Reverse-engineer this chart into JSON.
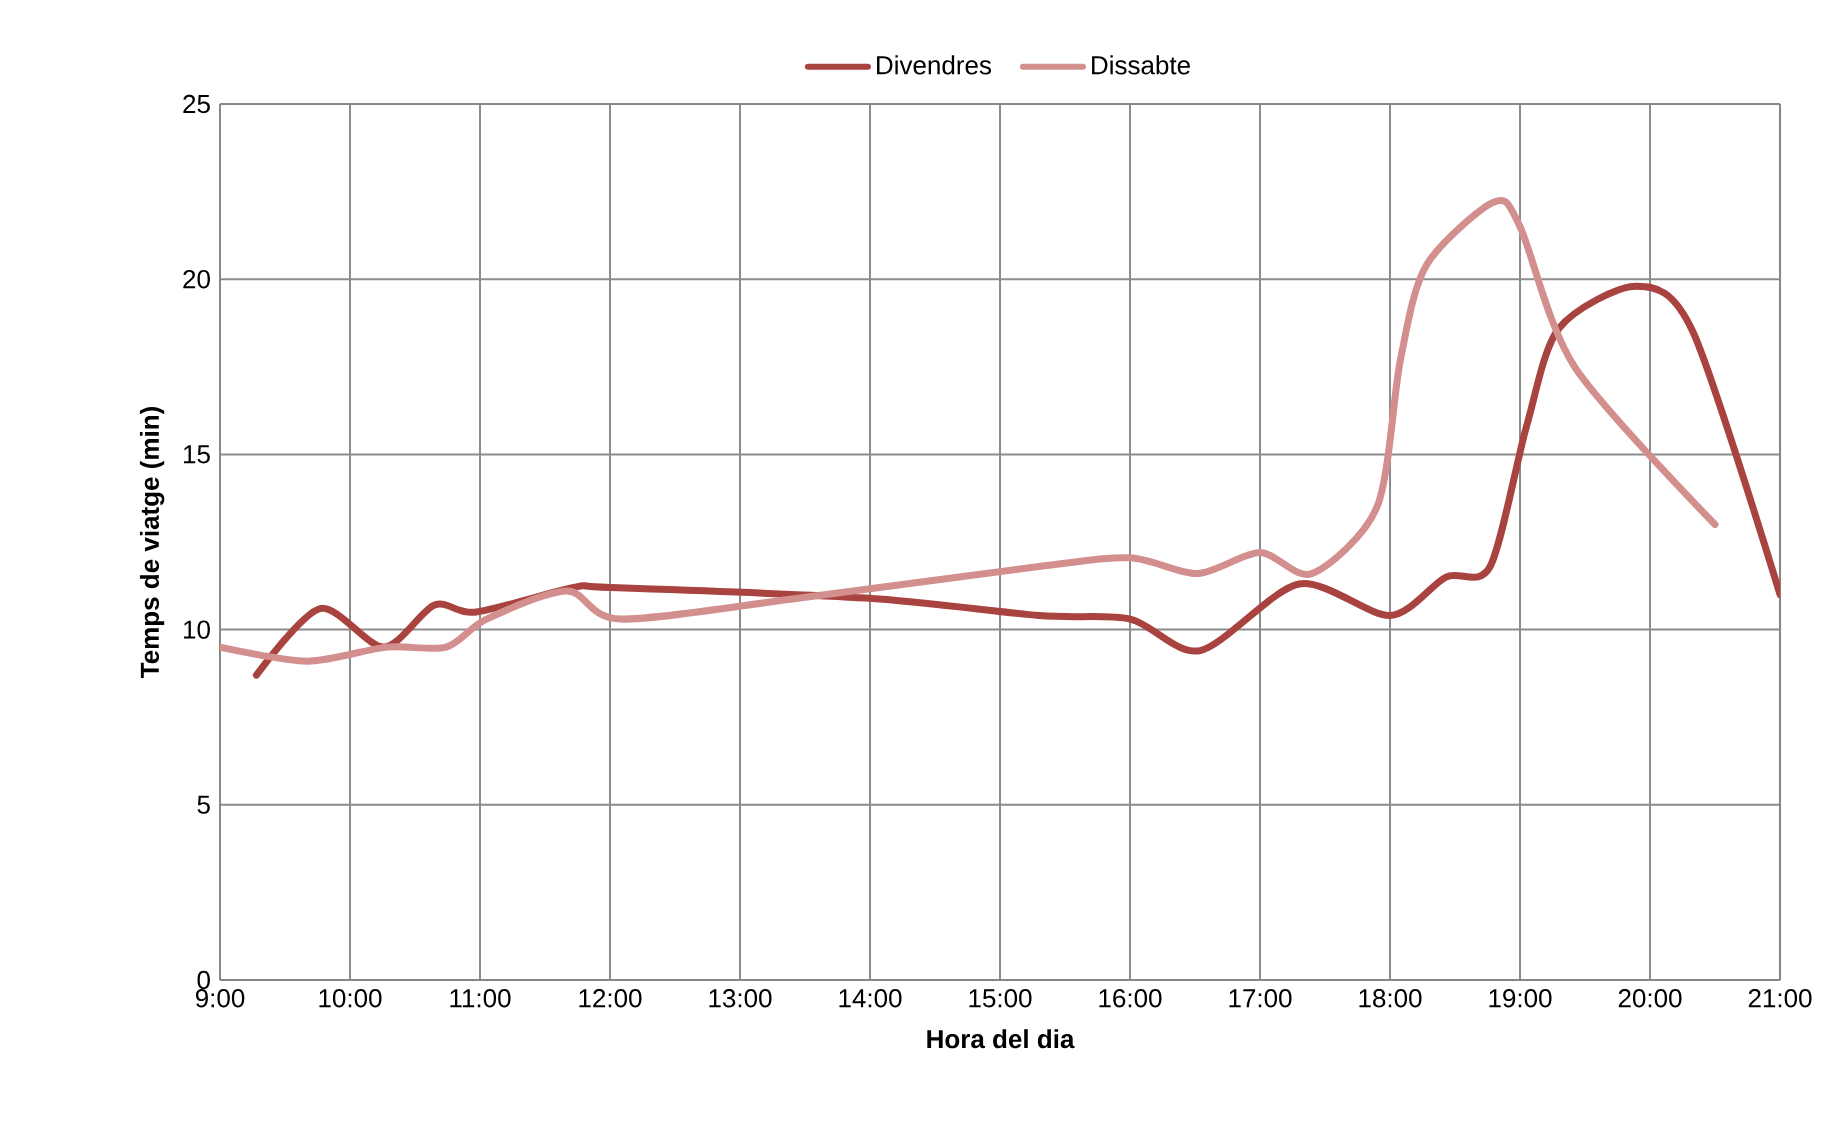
{
  "chart_data": {
    "type": "line",
    "xlabel": "Hora del dia",
    "ylabel": "Temps de viatge (min)",
    "xlim": [
      9,
      21
    ],
    "ylim": [
      0,
      25
    ],
    "xticks": [
      {
        "value": 9,
        "label": "9:00"
      },
      {
        "value": 10,
        "label": "10:00"
      },
      {
        "value": 11,
        "label": "11:00"
      },
      {
        "value": 12,
        "label": "12:00"
      },
      {
        "value": 13,
        "label": "13:00"
      },
      {
        "value": 14,
        "label": "14:00"
      },
      {
        "value": 15,
        "label": "15:00"
      },
      {
        "value": 16,
        "label": "16:00"
      },
      {
        "value": 17,
        "label": "17:00"
      },
      {
        "value": 18,
        "label": "18:00"
      },
      {
        "value": 19,
        "label": "19:00"
      },
      {
        "value": 20,
        "label": "20:00"
      },
      {
        "value": 21,
        "label": "21:00"
      }
    ],
    "yticks": [
      0,
      5,
      10,
      15,
      20,
      25
    ],
    "grid": true,
    "legend": "top",
    "marker": "none",
    "line_style": "solid",
    "series": [
      {
        "name": "Divendres",
        "color": "#a9433f",
        "x": [
          9.28,
          9.77,
          10.26,
          10.65,
          10.97,
          11.72,
          12.0,
          13.97,
          15.3,
          16.0,
          16.54,
          17.3,
          18.0,
          18.43,
          18.77,
          19.05,
          19.3,
          19.9,
          20.33,
          21.0
        ],
        "values": [
          8.7,
          10.6,
          9.5,
          10.7,
          10.5,
          11.2,
          11.2,
          10.9,
          10.4,
          10.3,
          9.4,
          11.3,
          10.4,
          11.5,
          11.8,
          15.8,
          18.6,
          19.8,
          18.5,
          11.0
        ]
      },
      {
        "name": "Dissabte",
        "color": "#d38f8e",
        "x": [
          9.0,
          9.67,
          10.28,
          10.74,
          11.05,
          11.67,
          12.08,
          13.46,
          15.3,
          16.0,
          16.52,
          17.0,
          17.4,
          17.9,
          18.08,
          18.28,
          18.8,
          19.0,
          19.42,
          20.5
        ],
        "values": [
          9.5,
          9.1,
          9.5,
          9.5,
          10.3,
          11.1,
          10.3,
          10.9,
          11.8,
          12.05,
          11.6,
          12.2,
          11.6,
          13.5,
          17.7,
          20.4,
          22.2,
          21.5,
          17.5,
          13.0
        ]
      }
    ]
  }
}
